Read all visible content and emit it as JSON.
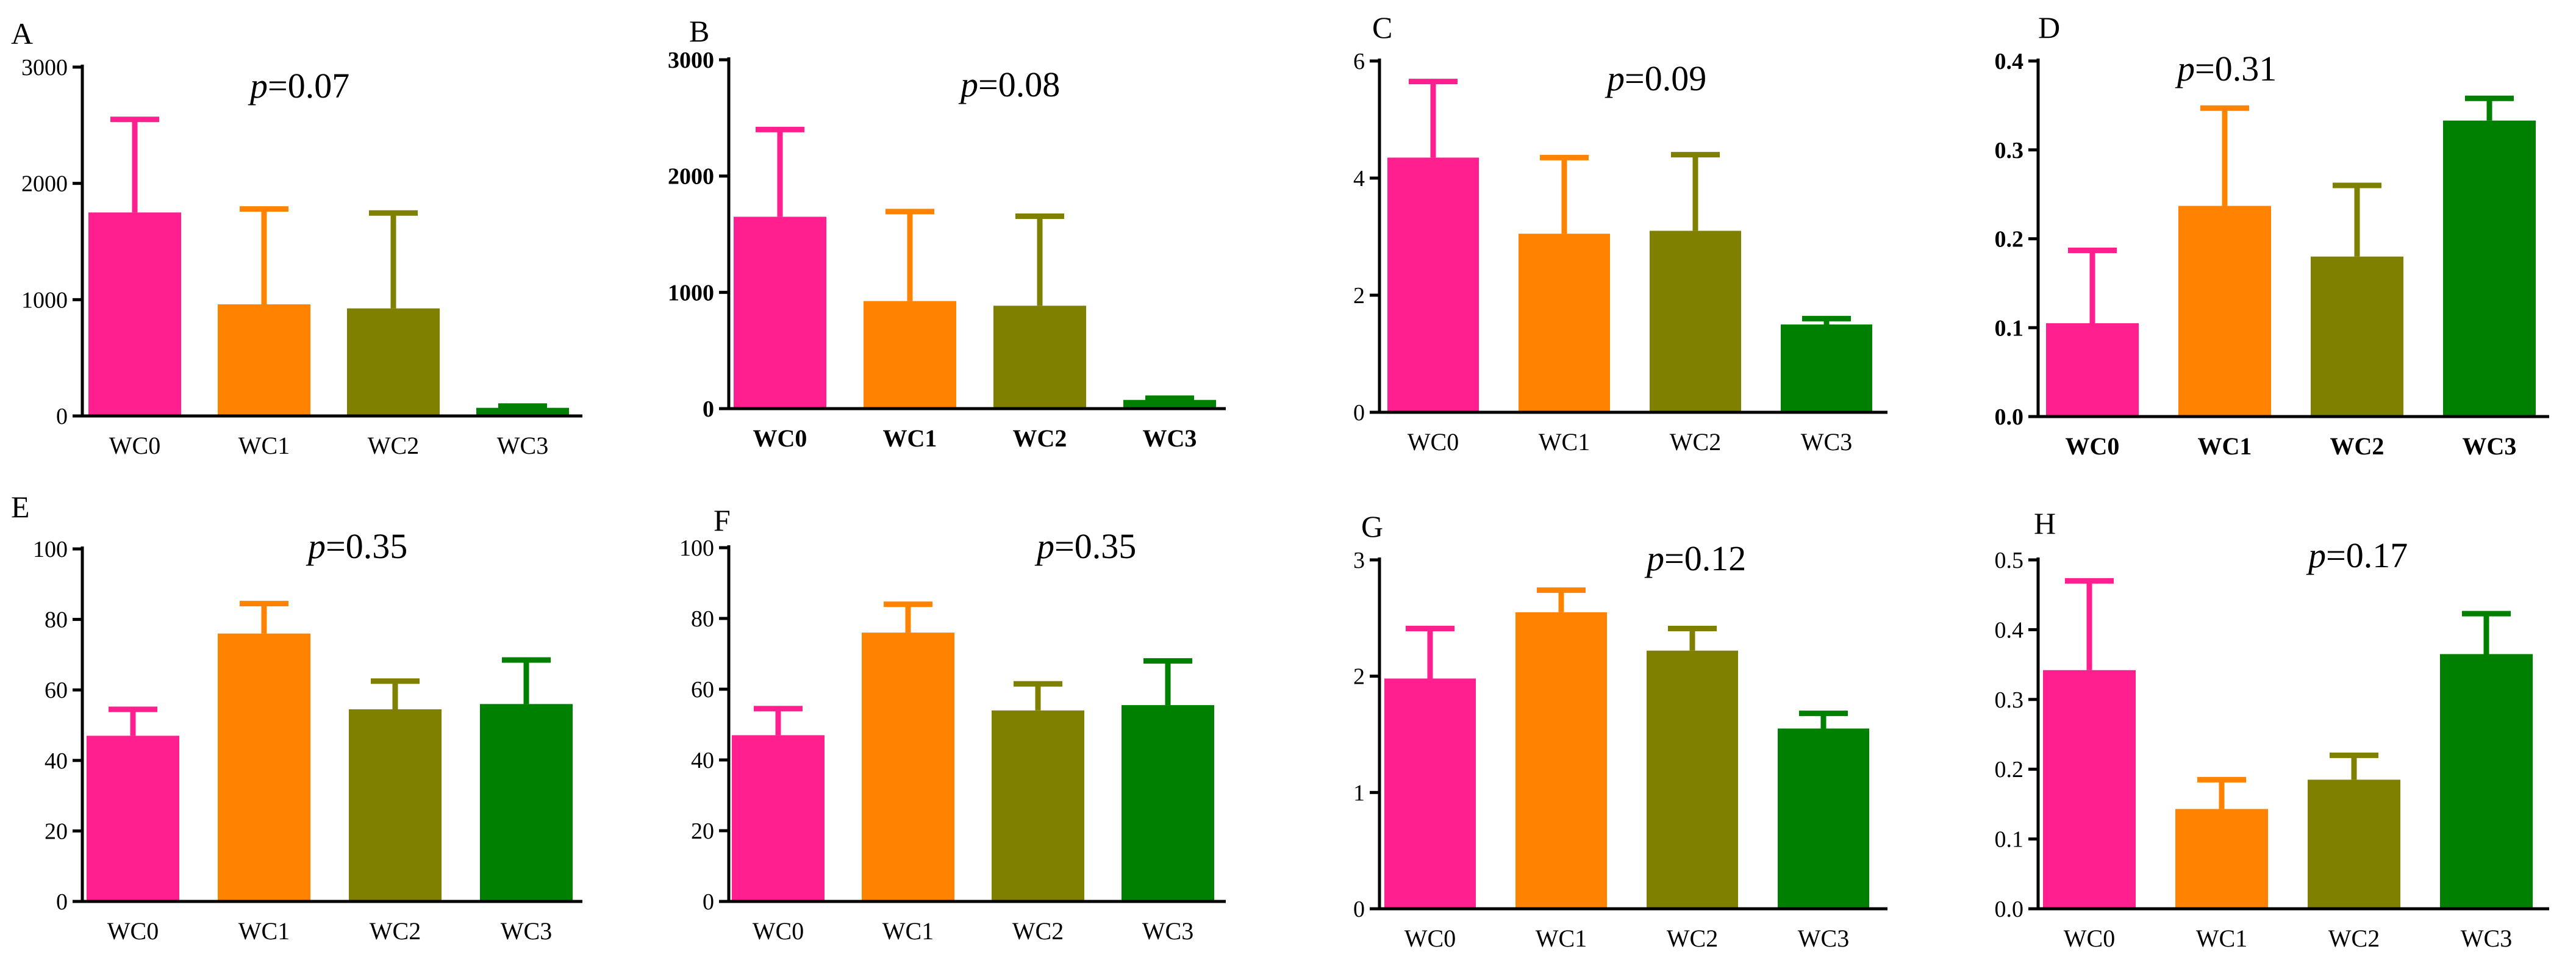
{
  "colors": {
    "WC0": "#ff1f8f",
    "WC1": "#ff8200",
    "WC2": "#808000",
    "WC3": "#008000"
  },
  "chart_data": [
    {
      "type": "bar",
      "panel": "A",
      "p_prefix": "p",
      "p_value": "=0.07",
      "categories": [
        "WC0",
        "WC1",
        "WC2",
        "WC3"
      ],
      "values": [
        1750,
        960,
        925,
        70
      ],
      "errors": [
        800,
        820,
        820,
        15
      ],
      "ylim": [
        0,
        3000
      ],
      "yticks": [
        0,
        1000,
        2000,
        3000
      ],
      "ytick_labels": [
        "0",
        "1000",
        "2000",
        "3000"
      ],
      "bold_labels": false
    },
    {
      "type": "bar",
      "panel": "B",
      "p_prefix": "p",
      "p_value": "=0.08",
      "categories": [
        "WC0",
        "WC1",
        "WC2",
        "WC3"
      ],
      "values": [
        1650,
        925,
        885,
        75
      ],
      "errors": [
        750,
        770,
        770,
        15
      ],
      "ylim": [
        0,
        3000
      ],
      "yticks": [
        0,
        1000,
        2000,
        3000
      ],
      "ytick_labels": [
        "0",
        "1000",
        "2000",
        "3000"
      ],
      "bold_labels": true
    },
    {
      "type": "bar",
      "panel": "C",
      "p_prefix": "p",
      "p_value": "=0.09",
      "categories": [
        "WC0",
        "WC1",
        "WC2",
        "WC3"
      ],
      "values": [
        4.35,
        3.05,
        3.1,
        1.5
      ],
      "errors": [
        1.3,
        1.3,
        1.3,
        0.1
      ],
      "ylim": [
        0,
        6
      ],
      "yticks": [
        0,
        2,
        4,
        6
      ],
      "ytick_labels": [
        "0",
        "2",
        "4",
        "6"
      ],
      "bold_labels": false
    },
    {
      "type": "bar",
      "panel": "D",
      "p_prefix": "p",
      "p_value": "=0.31",
      "categories": [
        "WC0",
        "WC1",
        "WC2",
        "WC3"
      ],
      "values": [
        0.105,
        0.237,
        0.18,
        0.333
      ],
      "errors": [
        0.082,
        0.11,
        0.08,
        0.025
      ],
      "ylim": [
        0,
        0.4
      ],
      "yticks": [
        0,
        0.1,
        0.2,
        0.3,
        0.4
      ],
      "ytick_labels": [
        "0.0",
        "0.1",
        "0.2",
        "0.3",
        "0.4"
      ],
      "bold_labels": true
    },
    {
      "type": "bar",
      "panel": "E",
      "p_prefix": "p",
      "p_value": "=0.35",
      "categories": [
        "WC0",
        "WC1",
        "WC2",
        "WC3"
      ],
      "values": [
        47,
        76,
        54.5,
        56
      ],
      "errors": [
        7.5,
        8.5,
        8,
        12.5
      ],
      "ylim": [
        0,
        100
      ],
      "yticks": [
        0,
        20,
        40,
        60,
        80,
        100
      ],
      "ytick_labels": [
        "0",
        "20",
        "40",
        "60",
        "80",
        "100"
      ],
      "bold_labels": false
    },
    {
      "type": "bar",
      "panel": "F",
      "p_prefix": "p",
      "p_value": "=0.35",
      "categories": [
        "WC0",
        "WC1",
        "WC2",
        "WC3"
      ],
      "values": [
        47,
        76,
        54,
        55.5
      ],
      "errors": [
        7.5,
        8,
        7.5,
        12.5
      ],
      "ylim": [
        0,
        100
      ],
      "yticks": [
        0,
        20,
        40,
        60,
        80,
        100
      ],
      "ytick_labels": [
        "0",
        "20",
        "40",
        "60",
        "80",
        "100"
      ],
      "bold_labels": false
    },
    {
      "type": "bar",
      "panel": "G",
      "p_prefix": "p",
      "p_value": "=0.12",
      "categories": [
        "WC0",
        "WC1",
        "WC2",
        "WC3"
      ],
      "values": [
        1.98,
        2.55,
        2.22,
        1.55
      ],
      "errors": [
        0.43,
        0.19,
        0.19,
        0.13
      ],
      "ylim": [
        0,
        3
      ],
      "yticks": [
        0,
        1,
        2,
        3
      ],
      "ytick_labels": [
        "0",
        "1",
        "2",
        "3"
      ],
      "bold_labels": false
    },
    {
      "type": "bar",
      "panel": "H",
      "p_prefix": "p",
      "p_value": "=0.17",
      "categories": [
        "WC0",
        "WC1",
        "WC2",
        "WC3"
      ],
      "values": [
        0.342,
        0.143,
        0.185,
        0.365
      ],
      "errors": [
        0.128,
        0.042,
        0.035,
        0.058
      ],
      "ylim": [
        0,
        0.5
      ],
      "yticks": [
        0,
        0.1,
        0.2,
        0.3,
        0.4,
        0.5
      ],
      "ytick_labels": [
        "0.0",
        "0.1",
        "0.2",
        "0.3",
        "0.4",
        "0.5"
      ],
      "bold_labels": false
    }
  ]
}
